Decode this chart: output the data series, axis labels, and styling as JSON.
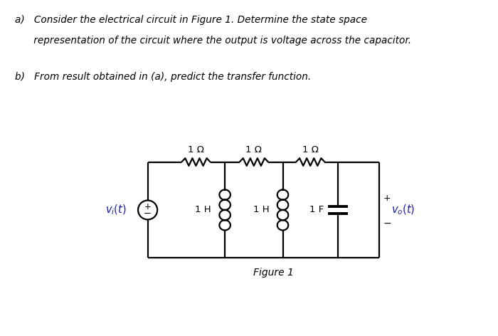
{
  "background_color": "#ffffff",
  "text_color": "#000000",
  "blue_color": "#1a1aaa",
  "title_a_line1": "a)   Consider the electrical circuit in Figure 1. Determine the state space",
  "title_a_line2": "      representation of the circuit where the output is voltage across the capacitor.",
  "title_b": "b)   From result obtained in (a), predict the transfer function.",
  "figure_label": "Figure 1",
  "R1_label": "1 Ω",
  "R2_label": "1 Ω",
  "R3_label": "1 Ω",
  "L1_label": "1 H",
  "L2_label": "1 H",
  "C_label": "1 F",
  "lw": 1.6
}
